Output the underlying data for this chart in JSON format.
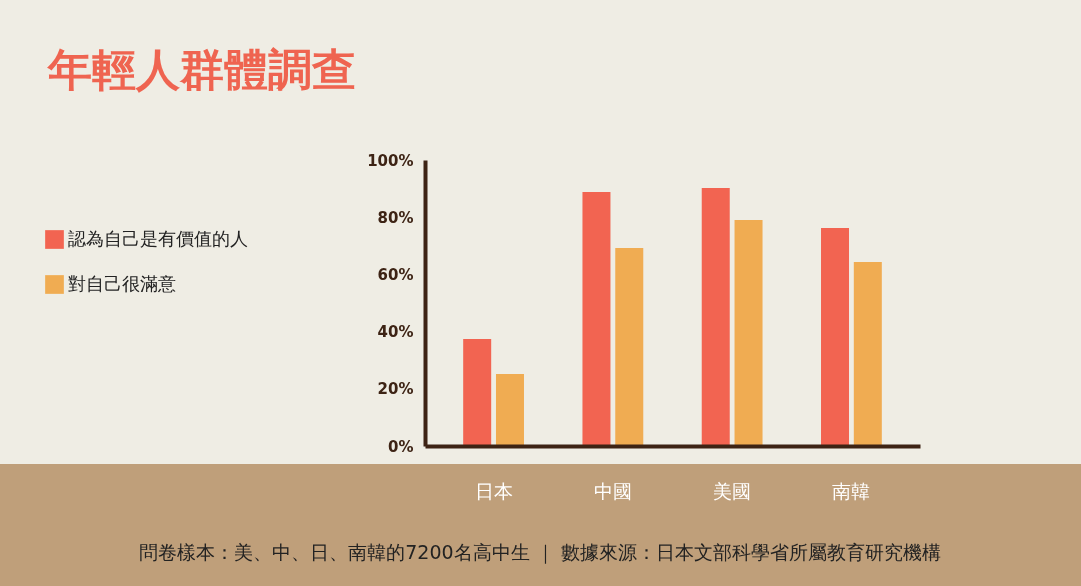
{
  "chart_data": {
    "type": "bar",
    "title": "年輕人群體調查",
    "categories": [
      "日本",
      "中國",
      "美國",
      "南韓"
    ],
    "series": [
      {
        "name": "認為自己是有價值的人",
        "color": "#f26451",
        "values": [
          37.4,
          88.8,
          90.2,
          76.2
        ]
      },
      {
        "name": "對自己很滿意",
        "color": "#f0ac52",
        "values": [
          25.2,
          69.2,
          79.0,
          64.3
        ]
      }
    ],
    "ylim": [
      0,
      100
    ],
    "yticks": [
      {
        "value": 0,
        "label": "0%"
      },
      {
        "value": 20,
        "label": "20%"
      },
      {
        "value": 40,
        "label": "40%"
      },
      {
        "value": 60,
        "label": "60%"
      },
      {
        "value": 80,
        "label": "80%"
      },
      {
        "value": 100,
        "label": "100%"
      }
    ],
    "grid": false,
    "legend": "left",
    "annotations": [
      "問卷樣本：美、中、日、南韓的7200名高中生 ｜ 數據來源：日本文部科學省所屬教育研究機構"
    ]
  }
}
